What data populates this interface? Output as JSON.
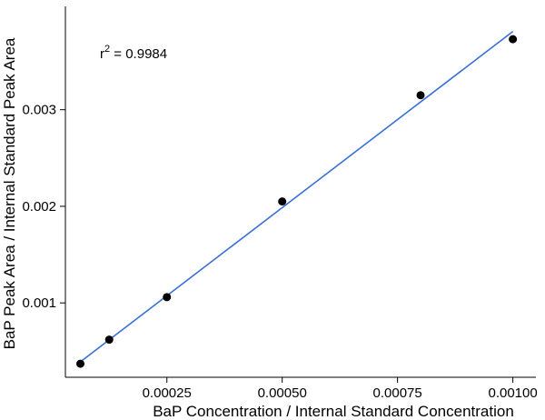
{
  "chart_data": {
    "type": "scatter",
    "title": "",
    "xlabel": "BaP Concentration / Internal Standard Concentration",
    "ylabel": "BaP Peak Area / Internal Standard Peak Area",
    "xlim": [
      3e-05,
      0.00105
    ],
    "ylim": [
      0.00023,
      0.00407
    ],
    "x_ticks": [
      0.00025,
      0.0005,
      0.00075,
      0.001
    ],
    "x_tick_labels": [
      "0.00025",
      "0.00050",
      "0.00075",
      "0.00100"
    ],
    "y_ticks": [
      0.001,
      0.002,
      0.003
    ],
    "y_tick_labels": [
      "0.001",
      "0.002",
      "0.003"
    ],
    "grid": false,
    "legend": "none",
    "series": [
      {
        "points": [
          {
            "x": 6.25e-05,
            "y": 0.00037
          },
          {
            "x": 0.000125,
            "y": 0.00062
          },
          {
            "x": 0.00025,
            "y": 0.00106
          },
          {
            "x": 0.0005,
            "y": 0.00205
          },
          {
            "x": 0.0008,
            "y": 0.00315
          },
          {
            "x": 0.001,
            "y": 0.00373
          }
        ],
        "color": "#000000"
      }
    ],
    "fit_line": {
      "x": [
        6.25e-05,
        0.001
      ],
      "y": [
        0.00039,
        0.00381
      ],
      "color": "#3a6fd8"
    },
    "annotation": {
      "r_symbol": "r",
      "superscript": "2",
      "text": " = 0.9984"
    }
  }
}
